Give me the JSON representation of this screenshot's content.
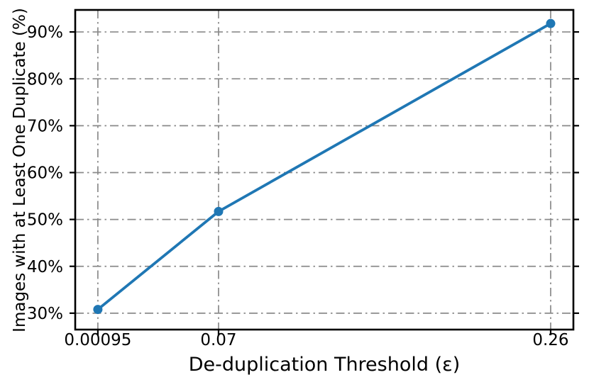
{
  "chart_data": {
    "type": "line",
    "title": "",
    "xlabel": "De-duplication Threshold (ε)",
    "ylabel": "Images with at Least One Duplicate (%)",
    "x": [
      0.00095,
      0.07,
      0.26
    ],
    "x_tick_labels": [
      "0.00095",
      "0.07",
      "0.26"
    ],
    "series": [
      {
        "name": "images-with-at-least-one-duplicate",
        "values": [
          30.8,
          51.7,
          91.8
        ]
      }
    ],
    "y_ticks": [
      30,
      40,
      50,
      60,
      70,
      80,
      90
    ],
    "y_tick_labels": [
      "30%",
      "40%",
      "50%",
      "60%",
      "70%",
      "80%",
      "90%"
    ],
    "xlim": [
      -0.012,
      0.273
    ],
    "ylim": [
      26.5,
      94.7
    ],
    "grid": {
      "visible": true,
      "style": "dashdot",
      "color": "#8a8a8a"
    },
    "legend": null,
    "colors": {
      "line": "#1f77b4",
      "marker": "#1f77b4",
      "spine": "#000000",
      "tick_label": "#000000"
    }
  }
}
